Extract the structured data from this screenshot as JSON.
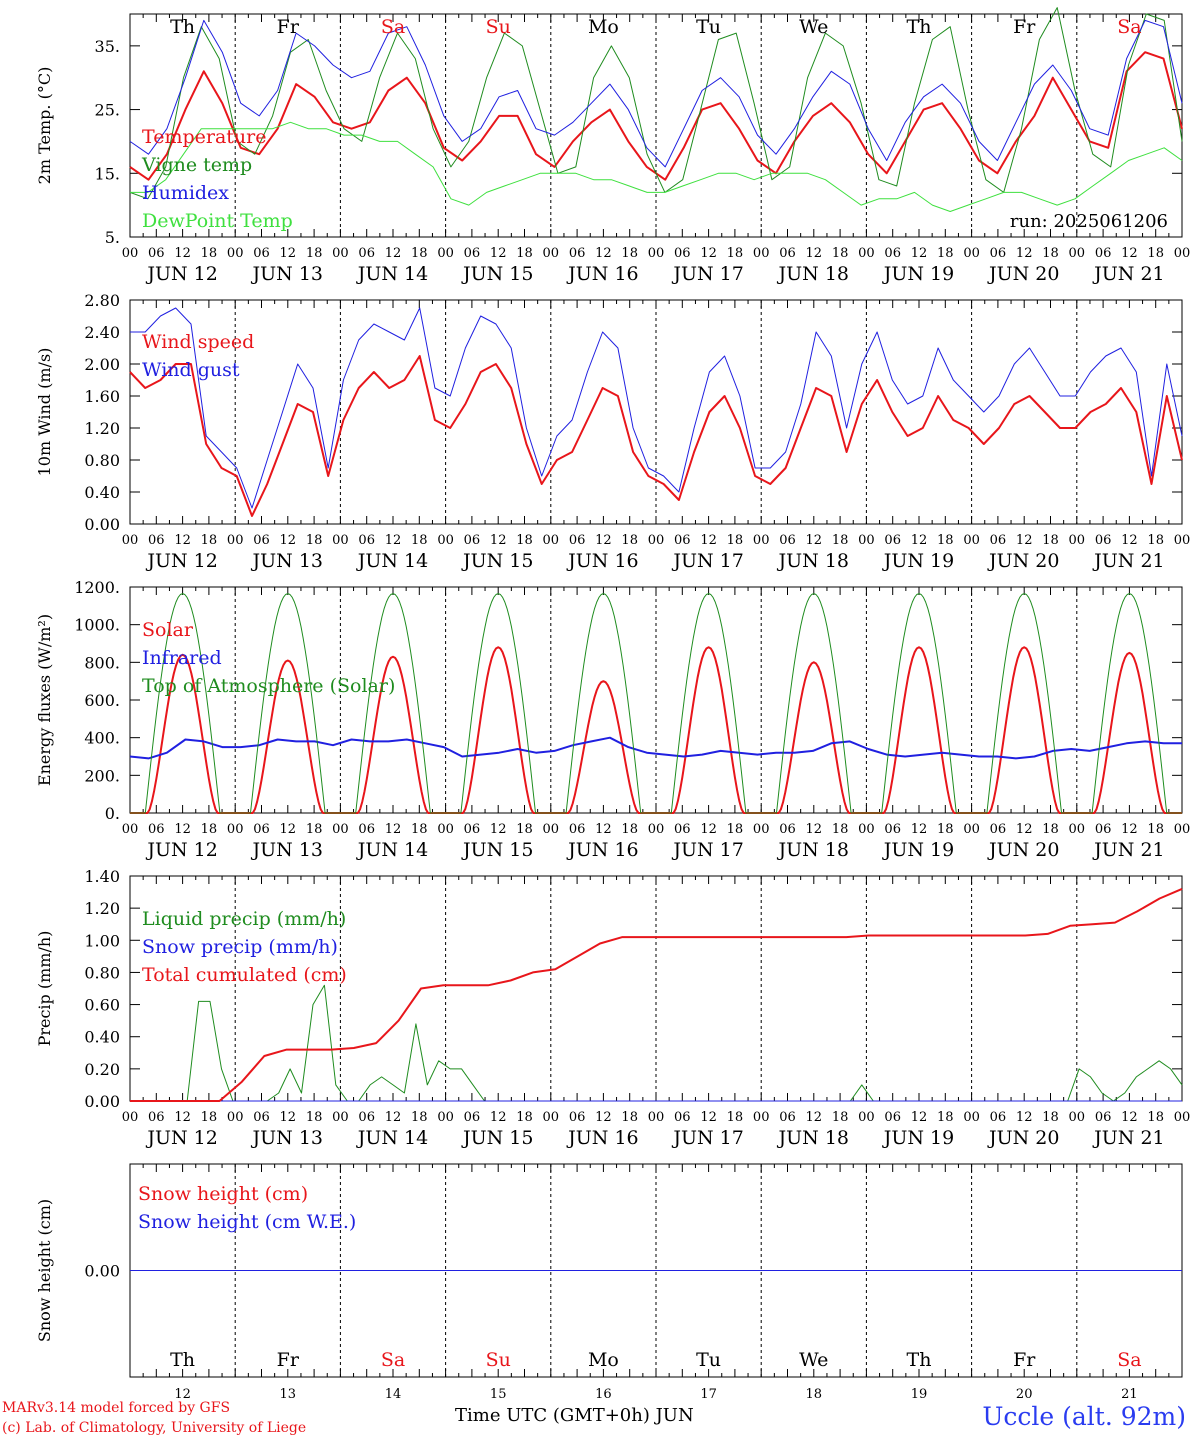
{
  "footer": {
    "model": "MARv3.14 model forced by GFS",
    "lab": "(c) Lab. of Climatology, University of Liege",
    "station": "Uccle (alt. 92m)",
    "xlabel": "Time UTC (GMT+0h) JUN"
  },
  "run_label": "run: 2025061206",
  "days": [
    "JUN 12",
    "JUN 13",
    "JUN 14",
    "JUN 15",
    "JUN 16",
    "JUN 17",
    "JUN 18",
    "JUN 19",
    "JUN 20",
    "JUN 21"
  ],
  "weekdays": [
    "Th",
    "Fr",
    "Sa",
    "Su",
    "Mo",
    "Tu",
    "We",
    "Th",
    "Fr",
    "Sa"
  ],
  "day_numbers": [
    "12",
    "13",
    "14",
    "15",
    "16",
    "17",
    "18",
    "19",
    "20",
    "21"
  ],
  "hour_ticks": [
    "00",
    "06",
    "12",
    "18"
  ],
  "final_tick": "00",
  "colors": {
    "red": "#e8161b",
    "green": "#1f8c1f",
    "blue": "#2020e0",
    "lightgreen": "#3fe03f",
    "weekend": "#e8161b",
    "black": "#000000"
  },
  "chart_data": [
    {
      "type": "line",
      "ylabel": "2m Temp. (°C)",
      "ylim": [
        5,
        40
      ],
      "yticks": [
        5,
        15,
        25,
        35
      ],
      "ytick_labels": [
        "5.",
        "15.",
        "25.",
        "35."
      ],
      "series": [
        {
          "name": "Temperature",
          "color": "red",
          "width": 2,
          "values": [
            16,
            14,
            18,
            25,
            31,
            26,
            19,
            18,
            22,
            29,
            27,
            23,
            22,
            23,
            28,
            30,
            26,
            19,
            17,
            20,
            24,
            24,
            18,
            16,
            20,
            23,
            25,
            20,
            16,
            14,
            19,
            25,
            26,
            22,
            17,
            15,
            20,
            24,
            26,
            23,
            18,
            15,
            20,
            25,
            26,
            22,
            17,
            15,
            20,
            24,
            30,
            25,
            20,
            19,
            31,
            34,
            33,
            22
          ]
        },
        {
          "name": "Vigne temp",
          "color": "green",
          "width": 1,
          "values": [
            12,
            11,
            16,
            30,
            38,
            33,
            20,
            18,
            24,
            34,
            36,
            28,
            22,
            20,
            30,
            37,
            33,
            22,
            16,
            20,
            30,
            37,
            35,
            25,
            15,
            16,
            30,
            35,
            30,
            18,
            12,
            14,
            25,
            36,
            37,
            26,
            14,
            16,
            30,
            37,
            35,
            26,
            14,
            13,
            26,
            36,
            38,
            25,
            14,
            12,
            22,
            36,
            41,
            28,
            18,
            16,
            32,
            40,
            39,
            20
          ]
        },
        {
          "name": "Humidex",
          "color": "blue",
          "width": 1,
          "values": [
            20,
            18,
            22,
            30,
            39,
            34,
            26,
            24,
            28,
            37,
            35,
            32,
            30,
            31,
            37,
            38,
            32,
            24,
            20,
            22,
            27,
            28,
            22,
            21,
            23,
            26,
            29,
            25,
            19,
            16,
            22,
            28,
            30,
            27,
            21,
            18,
            22,
            27,
            31,
            29,
            22,
            17,
            23,
            27,
            29,
            26,
            20,
            17,
            23,
            29,
            32,
            28,
            22,
            21,
            33,
            39,
            38,
            26
          ]
        },
        {
          "name": "DewPoint Temp",
          "color": "lightgreen",
          "width": 1,
          "values": [
            12,
            12,
            14,
            18,
            22,
            22,
            22,
            22,
            22,
            23,
            22,
            22,
            21,
            21,
            20,
            20,
            18,
            16,
            11,
            10,
            12,
            13,
            14,
            15,
            15,
            15,
            14,
            14,
            13,
            12,
            12,
            13,
            14,
            15,
            15,
            14,
            15,
            15,
            15,
            14,
            12,
            10,
            11,
            11,
            12,
            10,
            9,
            10,
            11,
            12,
            12,
            11,
            10,
            11,
            13,
            15,
            17,
            18,
            19,
            17
          ]
        }
      ]
    },
    {
      "type": "line",
      "ylabel": "10m Wind (m/s)",
      "ylim": [
        0,
        2.8
      ],
      "yticks": [
        0,
        0.4,
        0.8,
        1.2,
        1.6,
        2.0,
        2.4,
        2.8
      ],
      "ytick_labels": [
        "0.00",
        "0.40",
        "0.80",
        "1.20",
        "1.60",
        "2.00",
        "2.40",
        "2.80"
      ],
      "series": [
        {
          "name": "Wind speed",
          "color": "red",
          "width": 2,
          "values": [
            1.9,
            1.7,
            1.8,
            2.0,
            2.0,
            1.0,
            0.7,
            0.6,
            0.1,
            0.5,
            1.0,
            1.5,
            1.4,
            0.6,
            1.3,
            1.7,
            1.9,
            1.7,
            1.8,
            2.1,
            1.3,
            1.2,
            1.5,
            1.9,
            2.0,
            1.7,
            1.0,
            0.5,
            0.8,
            0.9,
            1.3,
            1.7,
            1.6,
            0.9,
            0.6,
            0.5,
            0.3,
            0.9,
            1.4,
            1.6,
            1.2,
            0.6,
            0.5,
            0.7,
            1.2,
            1.7,
            1.6,
            0.9,
            1.5,
            1.8,
            1.4,
            1.1,
            1.2,
            1.6,
            1.3,
            1.2,
            1.0,
            1.2,
            1.5,
            1.6,
            1.4,
            1.2,
            1.2,
            1.4,
            1.5,
            1.7,
            1.4,
            0.5,
            1.6,
            0.8
          ]
        },
        {
          "name": "Wind gust",
          "color": "blue",
          "width": 1,
          "values": [
            2.4,
            2.4,
            2.6,
            2.7,
            2.5,
            1.1,
            0.9,
            0.7,
            0.2,
            0.8,
            1.4,
            2.0,
            1.7,
            0.7,
            1.8,
            2.3,
            2.5,
            2.4,
            2.3,
            2.7,
            1.7,
            1.6,
            2.2,
            2.6,
            2.5,
            2.2,
            1.2,
            0.6,
            1.1,
            1.3,
            1.9,
            2.4,
            2.2,
            1.2,
            0.7,
            0.6,
            0.4,
            1.2,
            1.9,
            2.1,
            1.6,
            0.7,
            0.7,
            0.9,
            1.5,
            2.4,
            2.1,
            1.2,
            2.0,
            2.4,
            1.8,
            1.5,
            1.6,
            2.2,
            1.8,
            1.6,
            1.4,
            1.6,
            2.0,
            2.2,
            1.9,
            1.6,
            1.6,
            1.9,
            2.1,
            2.2,
            1.9,
            0.6,
            2.0,
            1.1
          ]
        }
      ]
    },
    {
      "type": "line",
      "ylabel": "Energy fluxes (W/m²)",
      "ylim": [
        0,
        1200
      ],
      "yticks": [
        0,
        200,
        400,
        600,
        800,
        1000,
        1200
      ],
      "ytick_labels": [
        "0.",
        "200.",
        "400.",
        "600.",
        "800.",
        "1000.",
        "1200."
      ],
      "series": [
        {
          "name": "Solar",
          "color": "red",
          "width": 2,
          "peaks": [
            840,
            810,
            830,
            880,
            700,
            880,
            800,
            880,
            880,
            850
          ]
        },
        {
          "name": "Infrared",
          "color": "blue",
          "width": 2,
          "values": [
            300,
            290,
            320,
            390,
            380,
            350,
            350,
            360,
            390,
            380,
            380,
            360,
            390,
            380,
            380,
            390,
            370,
            350,
            300,
            310,
            320,
            340,
            320,
            330,
            360,
            380,
            400,
            350,
            320,
            310,
            300,
            310,
            330,
            320,
            310,
            320,
            320,
            330,
            370,
            380,
            340,
            310,
            300,
            310,
            320,
            310,
            300,
            300,
            290,
            300,
            330,
            340,
            330,
            350,
            370,
            380,
            370,
            370
          ]
        },
        {
          "name": "Top of Atmosphere (Solar)",
          "color": "green",
          "width": 1,
          "peak": 1165
        }
      ]
    },
    {
      "type": "line",
      "ylabel": "Precip (mm/h)",
      "ylim": [
        0,
        1.4
      ],
      "yticks": [
        0,
        0.2,
        0.4,
        0.6,
        0.8,
        1.0,
        1.2,
        1.4
      ],
      "ytick_labels": [
        "0.00",
        "0.20",
        "0.40",
        "0.60",
        "0.80",
        "1.00",
        "1.20",
        "1.40"
      ],
      "series": [
        {
          "name": "Liquid precip (mm/h)",
          "color": "green",
          "width": 1,
          "values": [
            0,
            0,
            0,
            0,
            0,
            0,
            0.62,
            0.62,
            0.2,
            0,
            0,
            0,
            0,
            0.05,
            0.2,
            0.05,
            0.6,
            0.72,
            0.1,
            0,
            0,
            0.1,
            0.15,
            0.1,
            0.05,
            0.48,
            0.1,
            0.25,
            0.2,
            0.2,
            0.1,
            0,
            0,
            0,
            0,
            0,
            0,
            0,
            0,
            0,
            0,
            0,
            0,
            0,
            0,
            0,
            0,
            0,
            0,
            0,
            0,
            0,
            0,
            0,
            0,
            0,
            0,
            0,
            0,
            0,
            0,
            0,
            0,
            0,
            0.1,
            0,
            0,
            0,
            0,
            0,
            0,
            0,
            0,
            0,
            0,
            0,
            0,
            0,
            0,
            0,
            0,
            0,
            0,
            0.2,
            0.15,
            0.05,
            0,
            0.05,
            0.15,
            0.2,
            0.25,
            0.2,
            0.1
          ]
        },
        {
          "name": "Snow precip (mm/h)",
          "color": "blue",
          "width": 1,
          "values": [
            0,
            0
          ]
        },
        {
          "name": "Total cumulated (cm)",
          "color": "red",
          "width": 2,
          "values": [
            0,
            0,
            0,
            0,
            0,
            0.12,
            0.28,
            0.32,
            0.32,
            0.32,
            0.33,
            0.36,
            0.5,
            0.7,
            0.72,
            0.72,
            0.72,
            0.75,
            0.8,
            0.82,
            0.9,
            0.98,
            1.02,
            1.02,
            1.02,
            1.02,
            1.02,
            1.02,
            1.02,
            1.02,
            1.02,
            1.02,
            1.02,
            1.03,
            1.03,
            1.03,
            1.03,
            1.03,
            1.03,
            1.03,
            1.03,
            1.04,
            1.09,
            1.1,
            1.11,
            1.18,
            1.26,
            1.32
          ]
        }
      ]
    },
    {
      "type": "line",
      "ylabel": "Snow height (cm)",
      "ylim": [
        -1,
        1
      ],
      "yticks": [
        0
      ],
      "ytick_labels": [
        "0.00"
      ],
      "series": [
        {
          "name": "Snow height (cm)",
          "color": "red",
          "width": 1,
          "values": [
            0,
            0
          ]
        },
        {
          "name": "Snow height (cm W.E.)",
          "color": "blue",
          "width": 1,
          "values": [
            0,
            0
          ]
        }
      ]
    }
  ]
}
